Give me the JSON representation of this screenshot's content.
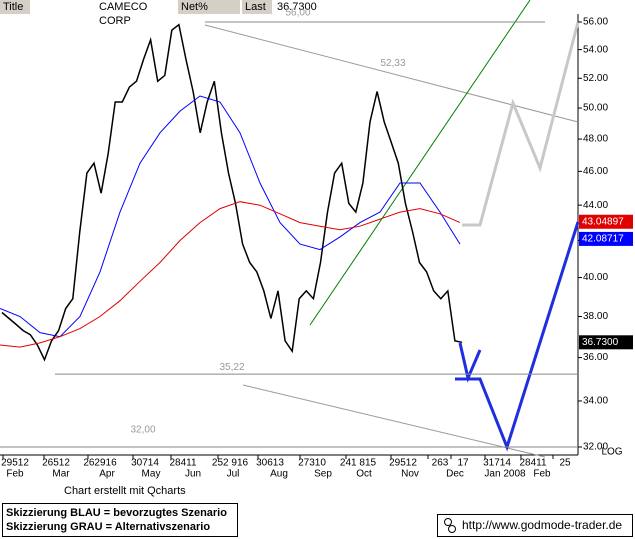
{
  "header": {
    "title_label": "Title",
    "name": "CAMECO CORP",
    "netpct_label": "Net%",
    "last_label": "Last",
    "last_value": "36.7300"
  },
  "chart_data": {
    "type": "line",
    "log": true,
    "log_label": "LOG",
    "ylim": [
      32,
      56
    ],
    "yticks": [
      {
        "value": 32,
        "label": "32.00"
      },
      {
        "value": 34,
        "label": "34.00"
      },
      {
        "value": 36,
        "label": "36.00"
      },
      {
        "value": 38,
        "label": "38.00"
      },
      {
        "value": 40,
        "label": "40.00"
      },
      {
        "value": 42,
        "label": "42.00"
      },
      {
        "value": 44,
        "label": "44.00"
      },
      {
        "value": 46,
        "label": "46.00"
      },
      {
        "value": 48,
        "label": "48.00"
      },
      {
        "value": 50,
        "label": "50.00"
      },
      {
        "value": 52,
        "label": "52.00"
      },
      {
        "value": 54,
        "label": "54.00"
      },
      {
        "value": 56,
        "label": "56.00"
      }
    ],
    "xtick_labels": [
      "29512",
      "26512",
      "262916",
      "30714",
      "28411",
      "252 916",
      "30613",
      "27310",
      "241 815",
      "29512",
      "263",
      "17",
      "31714",
      "28411",
      "25"
    ],
    "month_labels": [
      "Feb",
      "Mar",
      "Apr",
      "May",
      "Jun",
      "Jul",
      "Aug",
      "Sep",
      "Oct",
      "Nov",
      "Dec",
      "Jan 2008",
      "Feb"
    ],
    "series": [
      {
        "color": "#000000",
        "values": [
          38.2,
          37.9,
          37.6,
          37.3,
          37.1,
          36.6,
          35.9,
          36.8,
          37.3,
          38.4,
          38.9,
          42.5,
          45.9,
          46.5,
          44.7,
          47.1,
          50.4,
          50.4,
          51.4,
          51.8,
          53.3,
          54.7,
          51.8,
          52.2,
          55.4,
          55.8,
          53.3,
          51.1,
          48.4,
          50.4,
          51.8,
          48.4,
          45.9,
          44.1,
          41.8,
          40.8,
          40.3,
          39.3,
          37.9,
          39.3,
          36.8,
          36.3,
          38.9,
          39.3,
          38.9,
          40.8,
          43.6,
          45.9,
          46.5,
          44.1,
          43.6,
          45.3,
          49.1,
          51.1,
          49.1,
          47.8,
          46.5,
          44.1,
          42.5,
          40.8,
          40.3,
          39.3,
          38.9,
          39.3,
          36.8,
          36.73
        ]
      },
      {
        "color": "#0000ff",
        "values": [
          38.4,
          38.0,
          37.2,
          37.0,
          38.0,
          40.3,
          43.6,
          46.5,
          48.4,
          49.8,
          50.8,
          50.4,
          48.4,
          45.3,
          43.0,
          41.8,
          41.5,
          42.2,
          43.0,
          43.6,
          45.3,
          45.3,
          43.6,
          41.8
        ]
      },
      {
        "color": "#e00000",
        "values": [
          36.6,
          36.5,
          36.7,
          37.0,
          37.4,
          38.0,
          38.8,
          39.8,
          40.8,
          42.0,
          43.0,
          43.8,
          44.2,
          44.0,
          43.5,
          43.0,
          42.8,
          42.6,
          42.8,
          43.2,
          43.6,
          43.8,
          43.5,
          43.0
        ]
      }
    ],
    "annotations": [
      {
        "value": 56,
        "label": "56,00"
      },
      {
        "value": 52.33,
        "label": "52,33"
      },
      {
        "value": 35.22,
        "label": "35,22"
      },
      {
        "value": 32,
        "label": "32,00"
      }
    ],
    "price_tags": [
      {
        "value": 36.73,
        "label": "36.7300",
        "color": "#000000"
      },
      {
        "value": 43.04897,
        "label": "43.04897",
        "color": "#e00000"
      },
      {
        "value": 42.08717,
        "label": "42.08717",
        "color": "#0000ff"
      }
    ]
  },
  "footer": {
    "credit": "Chart erstellt mit Qcharts",
    "legend": [
      "Skizzierung BLAU = bevorzugtes Szenario",
      "Skizzierung GRAU = Alternativszenario"
    ],
    "url": "http://www.godmode-trader.de"
  }
}
